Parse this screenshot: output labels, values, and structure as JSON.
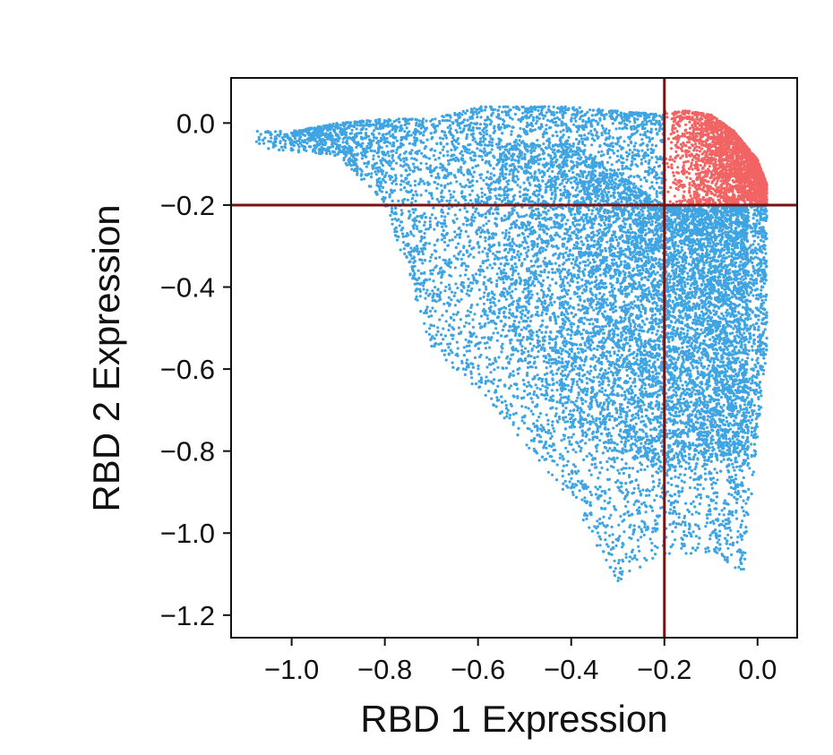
{
  "chart_data": {
    "type": "scatter",
    "title": "",
    "xlabel": "RBD 1 Expression",
    "ylabel": "RBD 2 Expression",
    "xlim": [
      -1.13,
      0.085
    ],
    "ylim": [
      -1.255,
      0.11
    ],
    "x_ticks": [
      -1.0,
      -0.8,
      -0.6,
      -0.4,
      -0.2,
      0.0
    ],
    "x_tick_labels": [
      "−1.0",
      "−0.8",
      "−0.6",
      "−0.4",
      "−0.2",
      "0.0"
    ],
    "y_ticks": [
      0.0,
      -0.2,
      -0.4,
      -0.6,
      -0.8,
      -1.0,
      -1.2
    ],
    "y_tick_labels": [
      "0.0",
      "−0.2",
      "−0.4",
      "−0.6",
      "−0.8",
      "−1.0",
      "−1.2"
    ],
    "grid": false,
    "legend": "none",
    "thresholds": {
      "x": -0.2,
      "y": -0.2,
      "color": "#7a1212"
    },
    "series": [
      {
        "color": "#3ea4e2",
        "region": "outside upper-right quadrant",
        "density_envelope": [
          {
            "x": -1.08,
            "y_top": -0.02,
            "y_bottom": -0.06
          },
          {
            "x": -1.0,
            "y_top": -0.02,
            "y_bottom": -0.07
          },
          {
            "x": -0.9,
            "y_top": 0.0,
            "y_bottom": -0.08
          },
          {
            "x": -0.8,
            "y_top": 0.01,
            "y_bottom": -0.2
          },
          {
            "x": -0.7,
            "y_top": 0.01,
            "y_bottom": -0.55
          },
          {
            "x": -0.6,
            "y_top": 0.04,
            "y_bottom": -0.65
          },
          {
            "x": -0.5,
            "y_top": 0.04,
            "y_bottom": -0.78
          },
          {
            "x": -0.4,
            "y_top": 0.04,
            "y_bottom": -0.92
          },
          {
            "x": -0.3,
            "y_top": 0.03,
            "y_bottom": -1.12
          },
          {
            "x": -0.2,
            "y_top": 0.02,
            "y_bottom": -1.05
          },
          {
            "x": -0.1,
            "y_top": 0.0,
            "y_bottom": -1.05
          },
          {
            "x": -0.03,
            "y_top": -0.05,
            "y_bottom": -1.1
          },
          {
            "x": 0.02,
            "y_top": -0.2,
            "y_bottom": -0.55
          }
        ]
      },
      {
        "color": "#f26464",
        "region": "upper-right quadrant (x > -0.2, y > -0.2)",
        "density_envelope": [
          {
            "x": -0.2,
            "y_top": 0.03,
            "y_bottom": -0.2
          },
          {
            "x": -0.15,
            "y_top": 0.03,
            "y_bottom": -0.2
          },
          {
            "x": -0.1,
            "y_top": 0.02,
            "y_bottom": -0.2
          },
          {
            "x": -0.05,
            "y_top": -0.02,
            "y_bottom": -0.2
          },
          {
            "x": 0.0,
            "y_top": -0.09,
            "y_bottom": -0.2
          },
          {
            "x": 0.02,
            "y_top": -0.15,
            "y_bottom": -0.2
          }
        ]
      }
    ]
  }
}
